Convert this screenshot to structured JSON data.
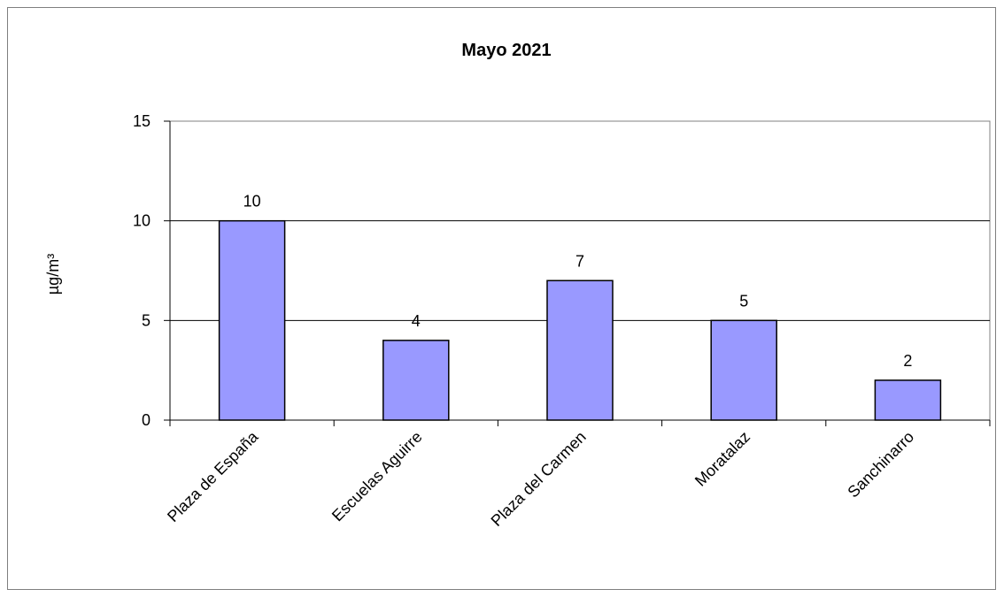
{
  "chart_data": {
    "type": "bar",
    "title": "Mayo 2021",
    "ylabel": "µg/m³",
    "xlabel": "",
    "categories": [
      "Plaza de España",
      "Escuelas Aguirre",
      "Plaza del Carmen",
      "Moratalaz",
      "Sanchinarro"
    ],
    "values": [
      10,
      4,
      7,
      5,
      2
    ],
    "ylim": [
      0,
      15
    ],
    "yticks": [
      "0",
      "5",
      "10",
      "15"
    ],
    "grid": true,
    "legend": "none",
    "bar_color": "#9999ff"
  }
}
